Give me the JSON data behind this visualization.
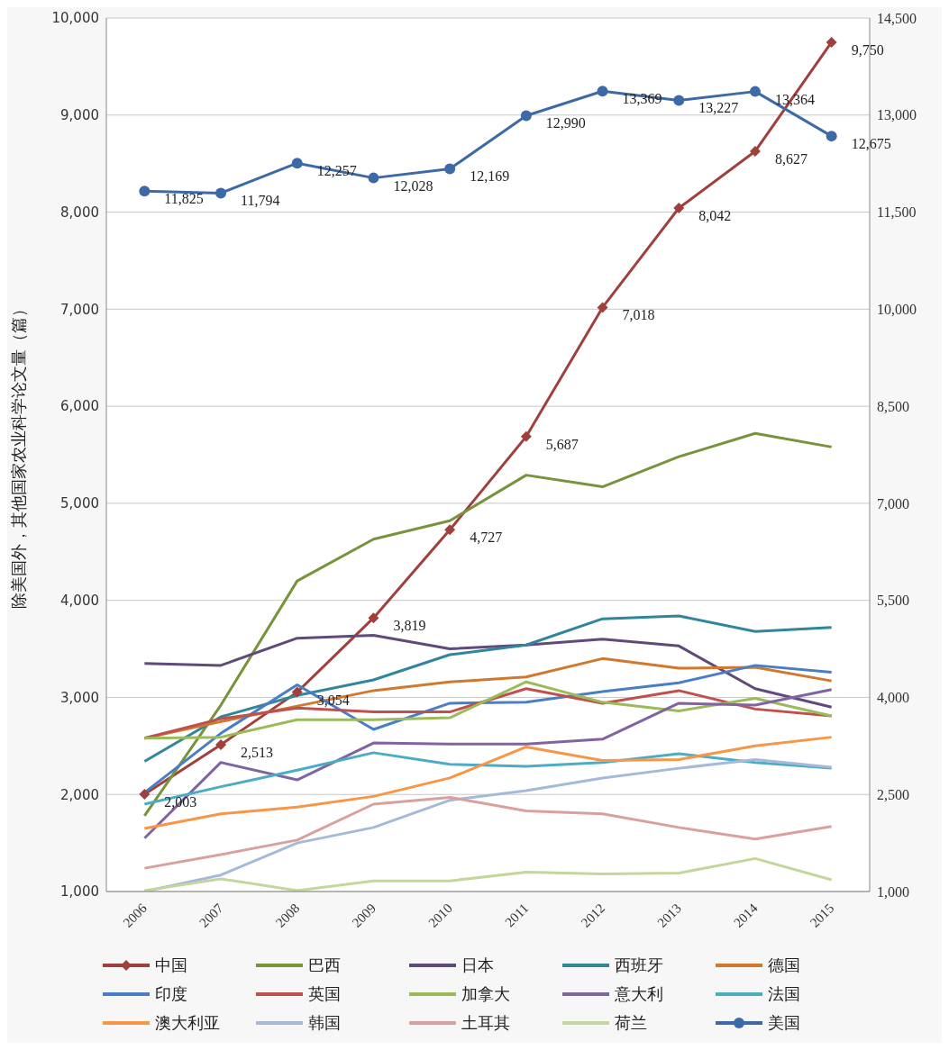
{
  "chart_data": {
    "type": "line",
    "ylabel": "除美国外，其他国家农业科学论文量（篇）",
    "categories": [
      "2006",
      "2007",
      "2008",
      "2009",
      "2010",
      "2011",
      "2012",
      "2013",
      "2014",
      "2015"
    ],
    "ylim": [
      1000,
      10000
    ],
    "yticks": [
      {
        "value": 1000,
        "label": "1,000"
      },
      {
        "value": 2000,
        "label": "2,000"
      },
      {
        "value": 3000,
        "label": "3,000"
      },
      {
        "value": 4000,
        "label": "4,000"
      },
      {
        "value": 5000,
        "label": "5,000"
      },
      {
        "value": 6000,
        "label": "6,000"
      },
      {
        "value": 7000,
        "label": "7,000"
      },
      {
        "value": 8000,
        "label": "8,000"
      },
      {
        "value": 9000,
        "label": "9,000"
      },
      {
        "value": 10000,
        "label": "10,000"
      }
    ],
    "y2lim": [
      1000,
      14500
    ],
    "y2ticks": [
      {
        "value": 1000,
        "label": "1,000"
      },
      {
        "value": 2500,
        "label": "2,500"
      },
      {
        "value": 4000,
        "label": "4,000"
      },
      {
        "value": 5500,
        "label": "5,500"
      },
      {
        "value": 7000,
        "label": "7,000"
      },
      {
        "value": 8500,
        "label": "8,500"
      },
      {
        "value": 10000,
        "label": "10,000"
      },
      {
        "value": 11500,
        "label": "11,500"
      },
      {
        "value": 13000,
        "label": "13,000"
      },
      {
        "value": 14500,
        "label": "14,500"
      }
    ],
    "grid": "y",
    "legend": "bottom",
    "line_style": "solid",
    "series": [
      {
        "name": "中国",
        "color": "#a0403c",
        "marker": "diamond",
        "values": [
          2003,
          2513,
          3054,
          3819,
          4727,
          5687,
          7018,
          8042,
          8627,
          9750
        ],
        "value_labels": [
          "2,003",
          "2,513",
          "3,054",
          "3,819",
          "4,727",
          "5,687",
          "7,018",
          "8,042",
          "8,627",
          "9,750"
        ]
      },
      {
        "name": "巴西",
        "color": "#77933c",
        "values": [
          1780,
          2920,
          4200,
          4630,
          4820,
          5290,
          5170,
          5480,
          5720,
          5580
        ]
      },
      {
        "name": "日本",
        "color": "#604a7b",
        "values": [
          3350,
          3330,
          3610,
          3640,
          3500,
          3540,
          3600,
          3530,
          3090,
          2900
        ]
      },
      {
        "name": "西班牙",
        "color": "#31859c",
        "values": [
          2340,
          2800,
          3020,
          3180,
          3440,
          3540,
          3810,
          3840,
          3680,
          3720
        ]
      },
      {
        "name": "德国",
        "color": "#d0782e",
        "values": [
          2580,
          2750,
          2910,
          3070,
          3160,
          3210,
          3400,
          3300,
          3310,
          3170
        ]
      },
      {
        "name": "印度",
        "color": "#4a7ec4",
        "values": [
          2020,
          2630,
          3130,
          2670,
          2940,
          2950,
          3060,
          3150,
          3330,
          3260
        ]
      },
      {
        "name": "英国",
        "color": "#c0504d",
        "values": [
          2580,
          2780,
          2890,
          2850,
          2850,
          3090,
          2940,
          3070,
          2880,
          2810
        ]
      },
      {
        "name": "加拿大",
        "color": "#9bbb59",
        "values": [
          2580,
          2590,
          2770,
          2770,
          2790,
          3160,
          2950,
          2860,
          2990,
          2810
        ]
      },
      {
        "name": "意大利",
        "color": "#8064a2",
        "values": [
          1550,
          2330,
          2150,
          2530,
          2520,
          2520,
          2570,
          2940,
          2920,
          3080
        ]
      },
      {
        "name": "法国",
        "color": "#4bacc6",
        "values": [
          1900,
          2080,
          2250,
          2430,
          2310,
          2290,
          2330,
          2420,
          2330,
          2270
        ]
      },
      {
        "name": "澳大利亚",
        "color": "#f79646",
        "values": [
          1650,
          1800,
          1870,
          1980,
          2170,
          2490,
          2350,
          2360,
          2500,
          2590
        ]
      },
      {
        "name": "韩国",
        "color": "#a5b9d9",
        "values": [
          1000,
          1170,
          1500,
          1660,
          1940,
          2040,
          2170,
          2270,
          2360,
          2280
        ]
      },
      {
        "name": "土耳其",
        "color": "#d9a09e",
        "values": [
          1240,
          1380,
          1530,
          1900,
          1970,
          1830,
          1800,
          1660,
          1540,
          1670
        ]
      },
      {
        "name": "荷兰",
        "color": "#c3d69b",
        "values": [
          1010,
          1130,
          1010,
          1110,
          1110,
          1200,
          1180,
          1190,
          1340,
          1120
        ]
      },
      {
        "name": "美国",
        "color": "#3d6aa6",
        "marker": "circle",
        "axis": "y2",
        "values": [
          11825,
          11794,
          12257,
          12028,
          12169,
          12990,
          13369,
          13227,
          13364,
          12675
        ],
        "value_labels": [
          "11,825",
          "11,794",
          "12,257",
          "12,028",
          "12,169",
          "12,990",
          "13,369",
          "13,227",
          "13,364",
          "12,675"
        ]
      }
    ]
  }
}
